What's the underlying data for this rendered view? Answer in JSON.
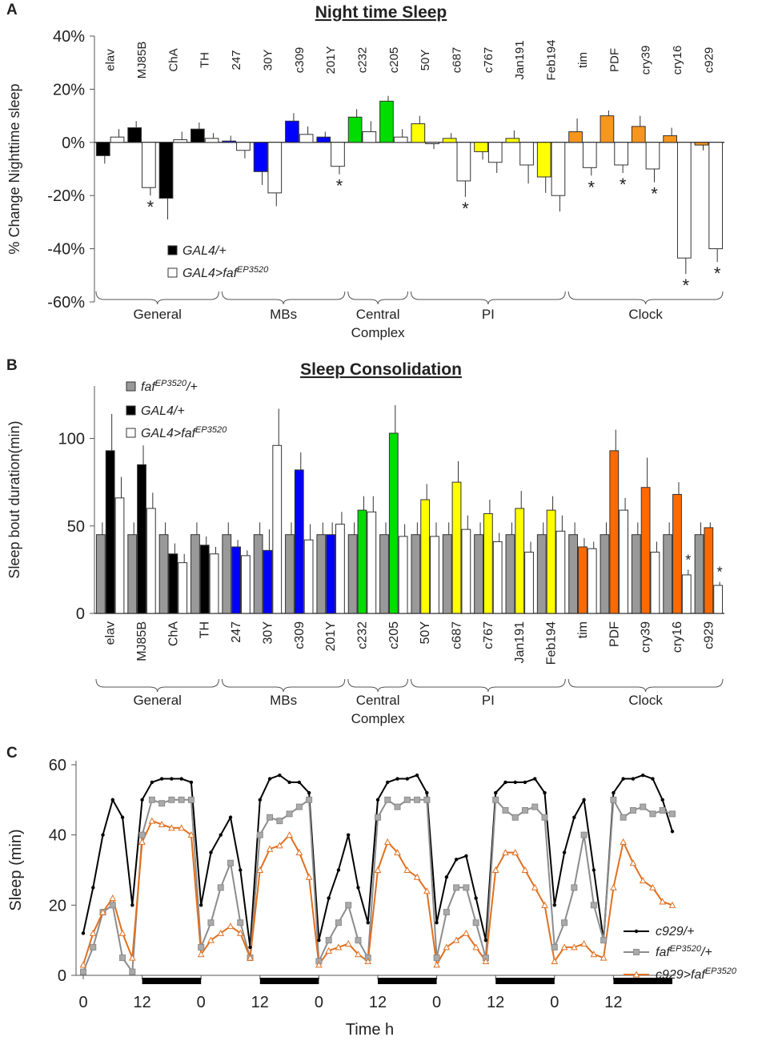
{
  "chart_data": [
    {
      "type": "bar",
      "panel": "A",
      "title": "Night time Sleep",
      "ylabel": "% Change Nighttime sleep",
      "categories": [
        "elav",
        "MJ85B",
        "ChA",
        "TH",
        "247",
        "30Y",
        "c309",
        "201Y",
        "c232",
        "c205",
        "50Y",
        "c687",
        "c767",
        "Jan191",
        "Feb194",
        "tim",
        "PDF",
        "cry39",
        "cry16",
        "c929"
      ],
      "series": [
        {
          "name": [
            "GAL4/+"
          ],
          "color": "#000000",
          "colors": [
            "#000000",
            "#000000",
            "#000000",
            "#000000",
            "#0000ff",
            "#0000ff",
            "#0000ff",
            "#0000ff",
            "#00dd00",
            "#00dd00",
            "#ffff00",
            "#ffff00",
            "#ffff00",
            "#ffff00",
            "#ffff00",
            "#f7961e",
            "#f7961e",
            "#f7961e",
            "#f7961e",
            "#f7961e"
          ],
          "values": [
            -5,
            5.5,
            -21,
            5,
            0.5,
            -11,
            8,
            2,
            9.5,
            15.5,
            7,
            1.5,
            -3.5,
            1.5,
            -13,
            4,
            10,
            6,
            2.5,
            -1
          ],
          "errors": [
            3,
            2.5,
            8,
            2.5,
            2,
            5,
            3,
            2,
            3,
            2,
            3,
            2,
            3,
            3,
            6,
            5,
            2,
            4,
            3,
            2
          ]
        },
        {
          "name": [
            "GAL4>faf",
            "EP3520"
          ],
          "color": "#ffffff",
          "values": [
            2,
            -17,
            1,
            1.5,
            -3,
            -19,
            3,
            -9,
            4,
            2,
            -0.5,
            -14.5,
            -7.5,
            -8.5,
            -20,
            -9.5,
            -8.5,
            -10,
            -43.5,
            -40
          ],
          "errors": [
            3,
            3,
            3,
            2,
            3,
            5,
            3,
            3,
            4,
            3,
            2,
            6,
            4,
            7,
            6,
            3,
            3,
            5,
            6,
            5
          ],
          "stars": [
            null,
            "*",
            null,
            null,
            null,
            null,
            null,
            "*",
            null,
            null,
            null,
            "*",
            null,
            null,
            null,
            "*",
            "*",
            "*",
            "*",
            "*"
          ]
        }
      ],
      "ylim": [
        -60,
        40
      ],
      "yticks": [
        {
          "value": -60,
          "label": "-60%"
        },
        {
          "value": -40,
          "label": "-40%"
        },
        {
          "value": -20,
          "label": "-20%"
        },
        {
          "value": 0,
          "label": "0%"
        },
        {
          "value": 20,
          "label": "20%"
        },
        {
          "value": 40,
          "label": "40%"
        }
      ],
      "groups": [
        {
          "label": "General",
          "from": 0,
          "to": 3
        },
        {
          "label": "MBs",
          "from": 4,
          "to": 7
        },
        {
          "label": "Central Complex",
          "from": 8,
          "to": 9
        },
        {
          "label": "PI",
          "from": 10,
          "to": 14
        },
        {
          "label": "Clock",
          "from": 15,
          "to": 19
        }
      ]
    },
    {
      "type": "bar",
      "panel": "B",
      "title": "Sleep Consolidation",
      "ylabel": "Sleep bout duration(min)",
      "categories": [
        "elav",
        "MJ85B",
        "ChA",
        "TH",
        "247",
        "30Y",
        "c309",
        "201Y",
        "c232",
        "c205",
        "50Y",
        "c687",
        "c767",
        "Jan191",
        "Feb194",
        "tim",
        "PDF",
        "cry39",
        "cry16",
        "c929"
      ],
      "series": [
        {
          "name": [
            "faf",
            "EP3520",
            "/+"
          ],
          "color": "#999999",
          "values": [
            45,
            45,
            45,
            45,
            45,
            45,
            45,
            45,
            45,
            45,
            45,
            45,
            45,
            45,
            45,
            45,
            45,
            45,
            45,
            45
          ],
          "errors": [
            7,
            7,
            7,
            7,
            7,
            7,
            7,
            7,
            7,
            7,
            7,
            7,
            7,
            7,
            7,
            7,
            7,
            7,
            7,
            7
          ]
        },
        {
          "name": [
            "GAL4/+"
          ],
          "color": "#000000",
          "colors": [
            "#000000",
            "#000000",
            "#000000",
            "#000000",
            "#0000ff",
            "#0000ff",
            "#0000ff",
            "#0000ff",
            "#00dd00",
            "#00dd00",
            "#ffff00",
            "#ffff00",
            "#ffff00",
            "#ffff00",
            "#ffff00",
            "#ff6a00",
            "#ff6a00",
            "#ff6a00",
            "#ff6a00",
            "#ff6a00"
          ],
          "values": [
            93,
            85,
            34,
            39,
            38,
            36,
            82,
            45,
            59,
            103,
            65,
            75,
            57,
            60,
            59,
            38,
            93,
            72,
            68,
            49
          ],
          "errors": [
            21,
            11,
            6,
            5,
            4,
            12,
            10,
            7,
            8,
            16,
            9,
            12,
            8,
            10,
            8,
            5,
            12,
            17,
            7,
            3
          ]
        },
        {
          "name": [
            "GAL4>faf",
            "EP3520"
          ],
          "color": "#ffffff",
          "values": [
            66,
            60,
            29,
            34,
            33,
            96,
            42,
            51,
            58,
            44,
            44,
            48,
            41,
            35,
            47,
            37,
            59,
            35,
            22,
            16
          ],
          "errors": [
            12,
            9,
            5,
            4,
            3,
            21,
            9,
            7,
            9,
            7,
            8,
            8,
            5,
            6,
            9,
            4,
            7,
            6,
            3,
            2
          ],
          "stars": [
            null,
            null,
            null,
            null,
            null,
            null,
            null,
            null,
            null,
            null,
            null,
            null,
            null,
            null,
            null,
            null,
            null,
            null,
            "*",
            "*"
          ]
        }
      ],
      "ylim": [
        0,
        130
      ],
      "yticks": [
        0,
        50,
        100
      ],
      "groups": [
        {
          "label": "General",
          "from": 0,
          "to": 3
        },
        {
          "label": "MBs",
          "from": 4,
          "to": 7
        },
        {
          "label": "Central Complex",
          "from": 8,
          "to": 9
        },
        {
          "label": "PI",
          "from": 10,
          "to": 14
        },
        {
          "label": "Clock",
          "from": 15,
          "to": 19
        }
      ]
    },
    {
      "type": "line",
      "panel": "C",
      "ylabel": "Sleep (min)",
      "xlabel": "Time h",
      "x": [
        0,
        2,
        4,
        6,
        8,
        10,
        12,
        14,
        16,
        18,
        20,
        22,
        24,
        26,
        28,
        30,
        32,
        34,
        36,
        38,
        40,
        42,
        44,
        46,
        48,
        50,
        52,
        54,
        56,
        58,
        60,
        62,
        64,
        66,
        68,
        70,
        72,
        74,
        76,
        78,
        80,
        82,
        84,
        86,
        88,
        90,
        92,
        94,
        96,
        98,
        100,
        102,
        104,
        106,
        108,
        110,
        112,
        114,
        116,
        118,
        120
      ],
      "series": [
        {
          "name": [
            "c929/+"
          ],
          "color": "#000000",
          "marker": "dot",
          "values": [
            12,
            25,
            40,
            50,
            45,
            20,
            50,
            55,
            56,
            56,
            56,
            55,
            20,
            35,
            40,
            45,
            30,
            8,
            50,
            56,
            57,
            55,
            55,
            52,
            10,
            22,
            30,
            40,
            25,
            15,
            50,
            55,
            56,
            56,
            57,
            52,
            15,
            28,
            33,
            34,
            22,
            10,
            52,
            55,
            55,
            55,
            56,
            52,
            20,
            35,
            45,
            50,
            30,
            10,
            52,
            56,
            56,
            57,
            56,
            50,
            41
          ]
        },
        {
          "name": [
            "faf",
            "EP3520",
            "/+"
          ],
          "color": "#8c8c8c",
          "marker": "square",
          "values": [
            1,
            8,
            18,
            20,
            5,
            1,
            40,
            50,
            49,
            50,
            50,
            50,
            8,
            15,
            25,
            32,
            15,
            5,
            40,
            45,
            44,
            46,
            48,
            50,
            4,
            10,
            15,
            20,
            10,
            5,
            45,
            50,
            48,
            50,
            50,
            50,
            5,
            18,
            25,
            25,
            15,
            5,
            50,
            47,
            45,
            47,
            48,
            45,
            8,
            15,
            25,
            40,
            20,
            10,
            50,
            45,
            47,
            48,
            46,
            47,
            46
          ]
        },
        {
          "name": [
            "c929>faf",
            "EP3520"
          ],
          "color": "#e07020",
          "marker": "triangle",
          "values": [
            3,
            12,
            18,
            22,
            12,
            5,
            38,
            44,
            43,
            42,
            42,
            40,
            6,
            10,
            12,
            14,
            12,
            5,
            30,
            36,
            37,
            40,
            35,
            28,
            3,
            7,
            8,
            9,
            6,
            4,
            30,
            38,
            35,
            30,
            28,
            24,
            3,
            8,
            10,
            12,
            8,
            4,
            30,
            35,
            35,
            30,
            25,
            20,
            4,
            8,
            8,
            9,
            6,
            5,
            25,
            38,
            32,
            27,
            25,
            21,
            20
          ]
        }
      ],
      "xlim": [
        0,
        120
      ],
      "xticks": [
        0,
        12,
        {
          "value": 24,
          "label": "0"
        },
        {
          "value": 36,
          "label": "12"
        },
        {
          "value": 48,
          "label": "0"
        },
        {
          "value": 60,
          "label": "12"
        },
        {
          "value": 72,
          "label": "0"
        },
        {
          "value": 84,
          "label": "12"
        },
        {
          "value": 96,
          "label": "0"
        },
        {
          "value": 108,
          "label": "12"
        }
      ],
      "ylim": [
        0,
        60
      ],
      "yticks": [
        0,
        20,
        40,
        60
      ],
      "dark_periods": [
        [
          12,
          24
        ],
        [
          36,
          48
        ],
        [
          60,
          72
        ],
        [
          84,
          96
        ],
        [
          108,
          120
        ]
      ]
    }
  ]
}
